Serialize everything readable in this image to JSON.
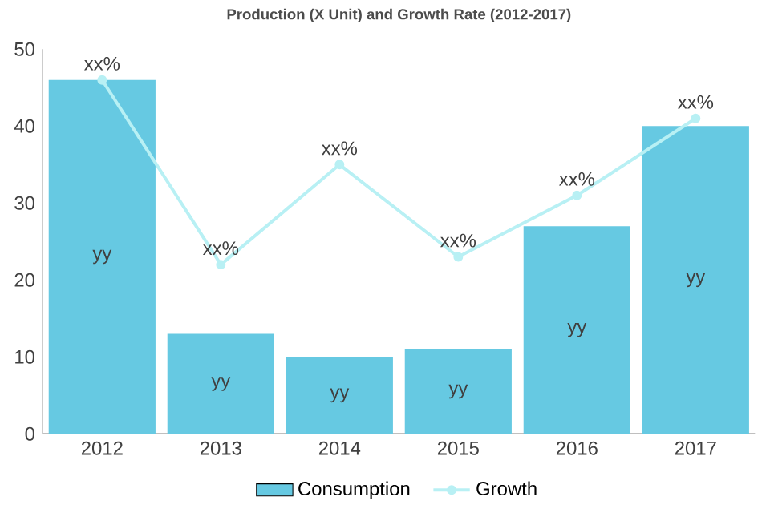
{
  "chart_data": {
    "type": "bar",
    "title": "Production (X Unit) and Growth Rate (2012-2017)",
    "categories": [
      "2012",
      "2013",
      "2014",
      "2015",
      "2016",
      "2017"
    ],
    "ylim": [
      0,
      50
    ],
    "yticks": [
      0,
      10,
      20,
      30,
      40,
      50
    ],
    "grid": false,
    "legend": "bottom",
    "series": [
      {
        "name": "Consumption",
        "color": "#66c9e2",
        "values": [
          46,
          13,
          10,
          11,
          27,
          40
        ],
        "value_labels": [
          "yy",
          "yy",
          "yy",
          "yy",
          "yy",
          "yy"
        ]
      },
      {
        "name": "Growth",
        "type": "line",
        "color": "#b8f0f4",
        "marker": "circle",
        "values": [
          46,
          22,
          35,
          23,
          31,
          41
        ],
        "value_labels": [
          "xx%",
          "xx%",
          "xx%",
          "xx%",
          "xx%",
          "xx%"
        ]
      }
    ]
  }
}
